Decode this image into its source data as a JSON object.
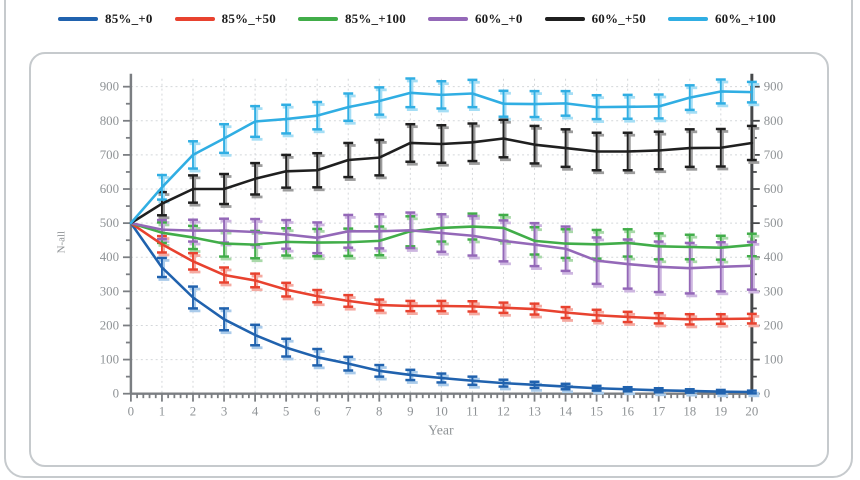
{
  "frame": {
    "border_color": "#c6cacd"
  },
  "legend": {
    "items": [
      {
        "label": "85%_+0",
        "color": "#2062ae"
      },
      {
        "label": "85%_+50",
        "color": "#e8422f"
      },
      {
        "label": "85%_+100",
        "color": "#41ad49"
      },
      {
        "label": "60%_+0",
        "color": "#9468b8"
      },
      {
        "label": "60%_+50",
        "color": "#1f1f1f"
      },
      {
        "label": "60%_+100",
        "color": "#30aee3"
      }
    ]
  },
  "chart_data": {
    "type": "line",
    "title": "",
    "xlabel": "Year",
    "ylabel": "N-all",
    "xlim": [
      0,
      20
    ],
    "ylim": [
      0,
      900
    ],
    "x": [
      0,
      1,
      2,
      3,
      4,
      5,
      6,
      7,
      8,
      9,
      10,
      11,
      12,
      13,
      14,
      15,
      16,
      17,
      18,
      19,
      20
    ],
    "x_ticks": [
      0,
      1,
      2,
      3,
      4,
      5,
      6,
      7,
      8,
      9,
      10,
      11,
      12,
      13,
      14,
      15,
      16,
      17,
      18,
      19,
      20
    ],
    "y_ticks": [
      0,
      100,
      200,
      300,
      400,
      500,
      600,
      700,
      800,
      900
    ],
    "x_minor_step": 0.2,
    "y_minor_step": 50,
    "grid": true,
    "legend_position": "top",
    "error_bars": true,
    "series": [
      {
        "name": "85%_+0",
        "color": "#2062ae",
        "light": "#aacbea",
        "values": [
          500,
          370,
          282,
          218,
          172,
          135,
          107,
          88,
          67,
          55,
          46,
          38,
          31,
          26,
          21,
          16,
          13,
          10,
          8,
          6,
          5
        ],
        "errors": [
          0,
          28,
          32,
          32,
          30,
          26,
          24,
          20,
          17,
          15,
          13,
          12,
          10,
          9,
          8,
          7,
          6,
          6,
          5,
          5,
          4
        ]
      },
      {
        "name": "85%_+50",
        "color": "#e8422f",
        "light": "#f5aaa1",
        "values": [
          500,
          438,
          388,
          348,
          332,
          305,
          286,
          272,
          260,
          257,
          257,
          256,
          252,
          248,
          238,
          230,
          225,
          221,
          218,
          219,
          220
        ],
        "errors": [
          0,
          24,
          24,
          22,
          20,
          20,
          18,
          17,
          16,
          15,
          15,
          15,
          15,
          16,
          16,
          16,
          15,
          15,
          15,
          14,
          14
        ]
      },
      {
        "name": "85%_+100",
        "color": "#41ad49",
        "light": "#a9d9a9",
        "values": [
          500,
          472,
          458,
          440,
          437,
          445,
          443,
          444,
          448,
          476,
          486,
          490,
          486,
          448,
          440,
          438,
          442,
          432,
          430,
          428,
          436
        ],
        "errors": [
          0,
          30,
          34,
          38,
          40,
          40,
          40,
          40,
          42,
          44,
          40,
          38,
          38,
          40,
          42,
          42,
          40,
          38,
          36,
          35,
          33
        ]
      },
      {
        "name": "60%_+0",
        "color": "#9468b8",
        "light": "#cdb6e0",
        "values": [
          500,
          481,
          478,
          478,
          474,
          467,
          457,
          476,
          476,
          479,
          471,
          463,
          448,
          437,
          425,
          390,
          380,
          372,
          368,
          372,
          375
        ],
        "errors": [
          0,
          28,
          32,
          35,
          38,
          42,
          45,
          48,
          50,
          52,
          55,
          58,
          60,
          63,
          65,
          68,
          72,
          74,
          74,
          72,
          70
        ]
      },
      {
        "name": "60%_+50",
        "color": "#1f1f1f",
        "light": "#9c9c9c",
        "values": [
          500,
          557,
          600,
          600,
          630,
          652,
          655,
          685,
          692,
          735,
          732,
          737,
          748,
          730,
          720,
          710,
          710,
          713,
          720,
          721,
          735
        ],
        "errors": [
          0,
          34,
          40,
          44,
          46,
          48,
          50,
          50,
          52,
          55,
          55,
          55,
          55,
          55,
          55,
          55,
          55,
          55,
          55,
          55,
          50
        ]
      },
      {
        "name": "60%_+100",
        "color": "#30aee3",
        "light": "#a5def5",
        "values": [
          500,
          605,
          700,
          748,
          798,
          805,
          815,
          840,
          858,
          882,
          876,
          880,
          850,
          849,
          851,
          840,
          841,
          842,
          868,
          886,
          884
        ],
        "errors": [
          0,
          36,
          40,
          42,
          45,
          42,
          40,
          40,
          40,
          42,
          40,
          40,
          38,
          38,
          36,
          35,
          35,
          35,
          36,
          35,
          30
        ]
      }
    ]
  }
}
